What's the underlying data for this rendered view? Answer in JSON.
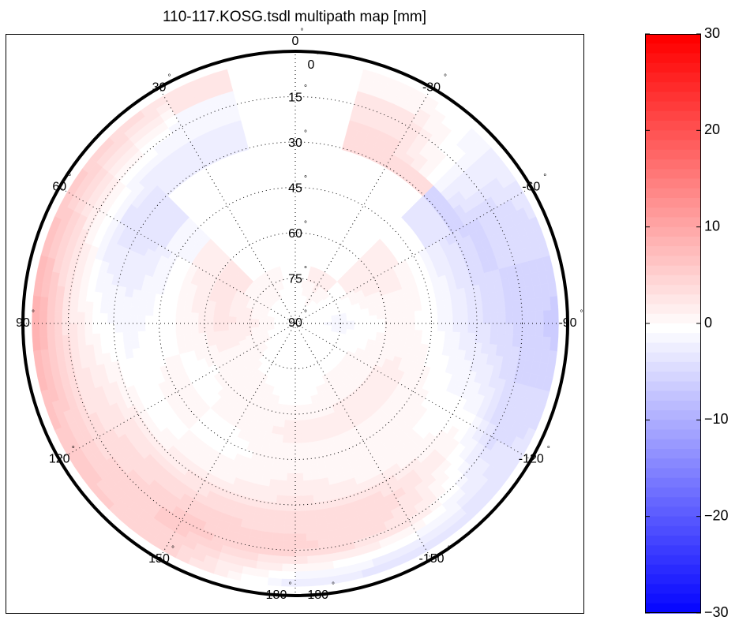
{
  "chart_data": {
    "type": "heatmap",
    "projection": "polar skyplot (azimuth clockwise-negative, 0 at top; radius = 90 - elevation)",
    "title": "110-117.KOSG.tsdl multipath map [mm]",
    "azimuth_tick_labels": [
      "0",
      "30",
      "60",
      "90",
      "120",
      "150",
      "180",
      "-150",
      "-120",
      "-90",
      "-60",
      "-30",
      "-180"
    ],
    "azimuth_tick_values": [
      0,
      30,
      60,
      90,
      120,
      150,
      180,
      -150,
      -120,
      -90,
      -60,
      -30,
      -180
    ],
    "elevation_tick_labels": [
      "0",
      "15",
      "30",
      "45",
      "60",
      "75",
      "90"
    ],
    "elevation_tick_values": [
      0,
      15,
      30,
      45,
      60,
      75,
      90
    ],
    "grid": true,
    "colorbar": {
      "range": [
        -30,
        30
      ],
      "ticks": [
        30,
        20,
        10,
        0,
        -10,
        -20,
        -30
      ],
      "tick_labels": [
        "30",
        "20",
        "10",
        "0",
        "−10",
        "−20",
        "−30"
      ],
      "colormap": "blue-white-red",
      "low_color": "#0000ff",
      "mid_color": "#ffffff",
      "high_color": "#ff0000",
      "placement": "right"
    },
    "grid_azimuth_centers": [
      0,
      30,
      60,
      90,
      120,
      150,
      180,
      -150,
      -120,
      -90,
      -60,
      -30
    ],
    "grid_elevation_centers": [
      5,
      15,
      25,
      35,
      45,
      55,
      65,
      75,
      85
    ],
    "values_mm": [
      [
        null,
        null,
        null,
        null,
        null,
        null,
        null,
        0,
        0
      ],
      [
        3,
        -1,
        -2,
        null,
        null,
        null,
        null,
        1,
        0
      ],
      [
        6,
        2,
        -3,
        -3,
        -1,
        2,
        3,
        1,
        0
      ],
      [
        9,
        3,
        0,
        -1,
        0,
        1,
        3,
        2,
        0
      ],
      [
        6,
        4,
        3,
        0,
        1,
        0,
        1,
        1,
        0
      ],
      [
        5,
        6,
        4,
        1,
        0,
        1,
        1,
        0,
        0
      ],
      [
        -2,
        5,
        4,
        2,
        1,
        2,
        0,
        0,
        0
      ],
      [
        -3,
        3,
        4,
        1,
        1,
        2,
        1,
        0,
        0
      ],
      [
        -3,
        -4,
        0,
        0,
        1,
        2,
        1,
        0,
        0
      ],
      [
        -6,
        -5,
        -4,
        -2,
        0,
        1,
        0,
        -1,
        0
      ],
      [
        -3,
        -4,
        -5,
        -3,
        0,
        2,
        2,
        0,
        0
      ],
      [
        1,
        3,
        4,
        null,
        null,
        null,
        null,
        2,
        0
      ]
    ],
    "min_elevation_mm_data": 3
  }
}
